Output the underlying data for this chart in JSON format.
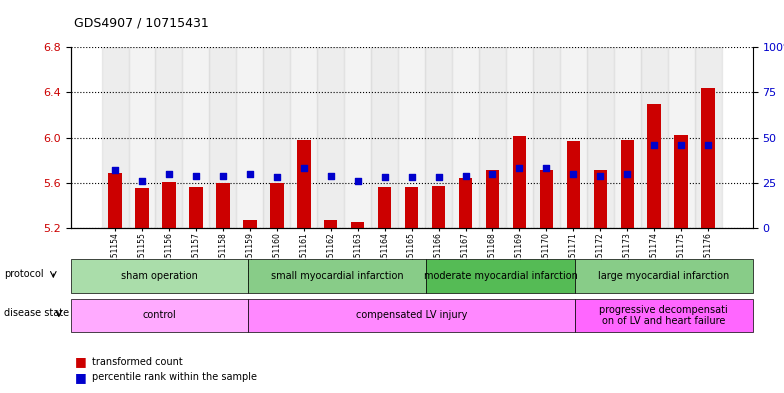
{
  "title": "GDS4907 / 10715431",
  "samples": [
    "GSM1151154",
    "GSM1151155",
    "GSM1151156",
    "GSM1151157",
    "GSM1151158",
    "GSM1151159",
    "GSM1151160",
    "GSM1151161",
    "GSM1151162",
    "GSM1151163",
    "GSM1151164",
    "GSM1151165",
    "GSM1151166",
    "GSM1151167",
    "GSM1151168",
    "GSM1151169",
    "GSM1151170",
    "GSM1151171",
    "GSM1151172",
    "GSM1151173",
    "GSM1151174",
    "GSM1151175",
    "GSM1151176"
  ],
  "bar_values": [
    5.69,
    5.55,
    5.61,
    5.56,
    5.6,
    5.27,
    5.6,
    5.98,
    5.27,
    5.25,
    5.56,
    5.56,
    5.57,
    5.64,
    5.71,
    6.01,
    5.71,
    5.97,
    5.71,
    5.98,
    6.3,
    6.02,
    6.44
  ],
  "percentile_values": [
    32,
    26,
    30,
    29,
    29,
    30,
    28,
    33,
    29,
    26,
    28,
    28,
    28,
    29,
    30,
    33,
    33,
    30,
    29,
    30,
    46,
    46,
    46
  ],
  "ylim_left": [
    5.2,
    6.8
  ],
  "ylim_right": [
    0,
    100
  ],
  "yticks_left": [
    5.2,
    5.6,
    6.0,
    6.4,
    6.8
  ],
  "yticks_right": [
    0,
    25,
    50,
    75,
    100
  ],
  "ytick_labels_right": [
    "0",
    "25",
    "50",
    "75",
    "100%"
  ],
  "bar_color": "#cc0000",
  "dot_color": "#0000cc",
  "bar_width": 0.5,
  "protocol_groups": [
    {
      "label": "sham operation",
      "start": 0,
      "end": 5,
      "color": "#aaddaa"
    },
    {
      "label": "small myocardial infarction",
      "start": 6,
      "end": 11,
      "color": "#88cc88"
    },
    {
      "label": "moderate myocardial infarction",
      "start": 12,
      "end": 16,
      "color": "#55bb55"
    },
    {
      "label": "large myocardial infarction",
      "start": 17,
      "end": 22,
      "color": "#88cc88"
    }
  ],
  "disease_groups": [
    {
      "label": "control",
      "start": 0,
      "end": 5,
      "color": "#ffaaff"
    },
    {
      "label": "compensated LV injury",
      "start": 6,
      "end": 16,
      "color": "#ff88ff"
    },
    {
      "label": "progressive decompensati\non of LV and heart failure",
      "start": 17,
      "end": 22,
      "color": "#ff66ff"
    }
  ]
}
